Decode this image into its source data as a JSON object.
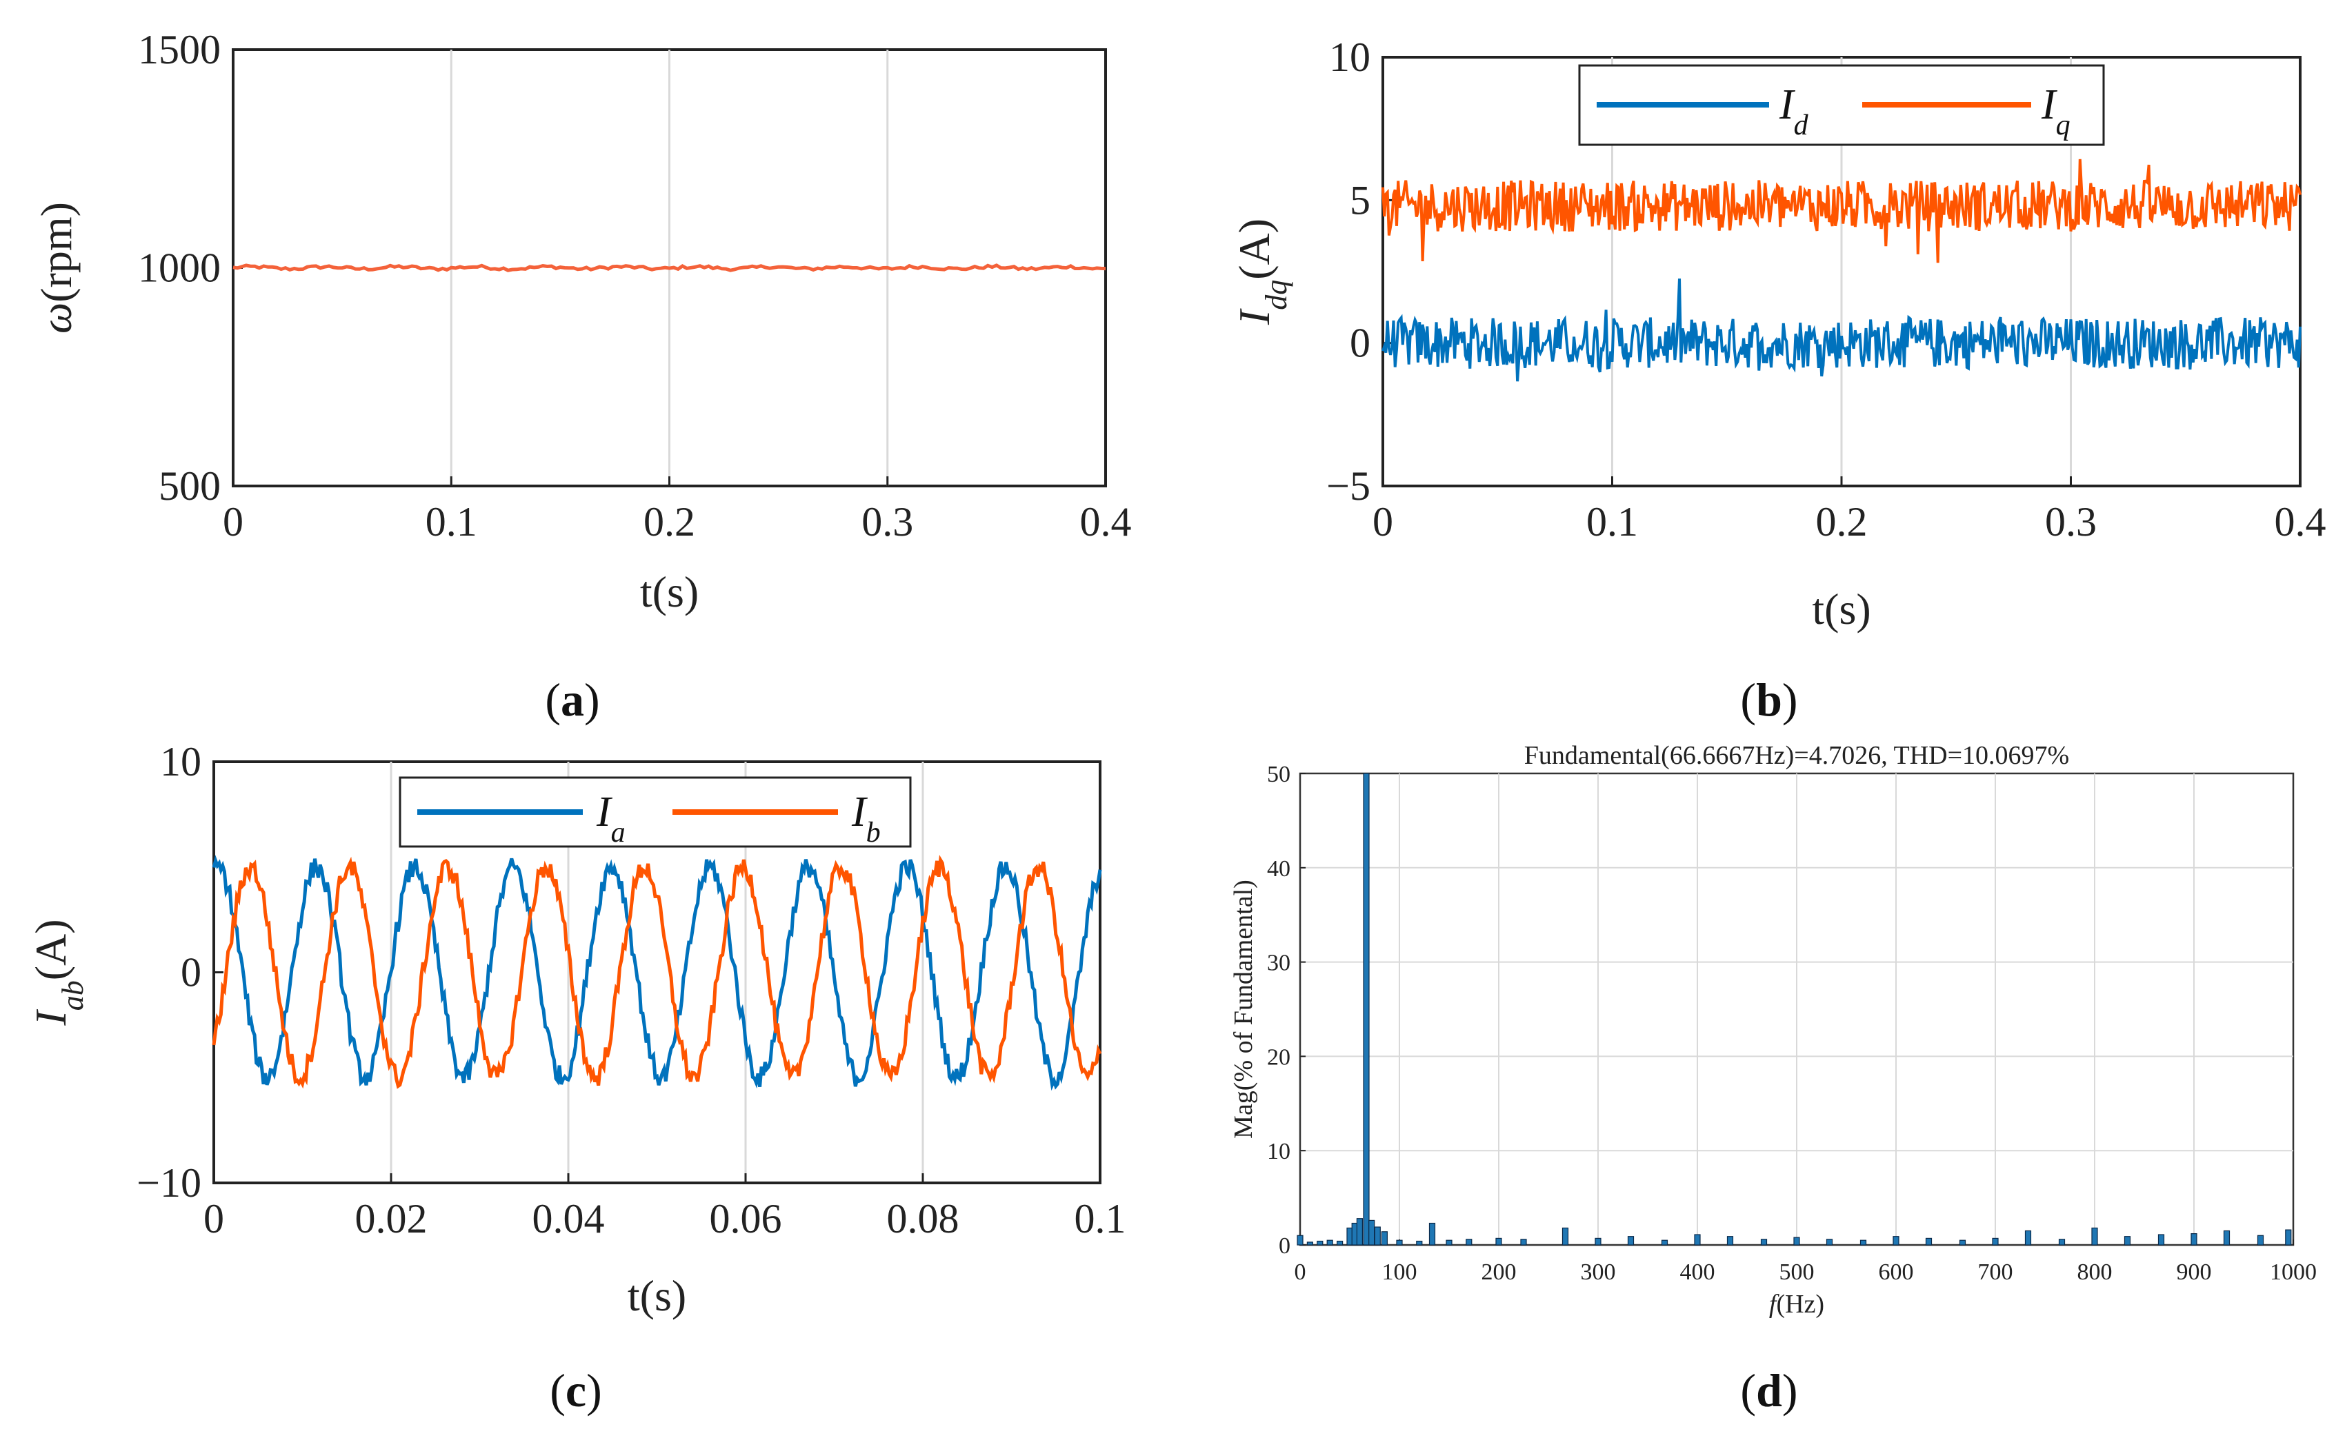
{
  "colors": {
    "blue": "#0072BD",
    "orange": "#FF5500",
    "orange_speed": "#F4623A",
    "bar_blue": "#1F77B4",
    "grid": "#d9d9d9"
  },
  "panels": {
    "a": {
      "caption_letter": "a"
    },
    "b": {
      "caption_letter": "b"
    },
    "c": {
      "caption_letter": "c"
    },
    "d": {
      "caption_letter": "d"
    }
  },
  "chart_data": [
    {
      "id": "a",
      "type": "line",
      "xlabel": "t(s)",
      "ylabel_symbol": "ω",
      "ylabel_unit": "(rpm)",
      "xlim": [
        0,
        0.4
      ],
      "ylim": [
        500,
        1500
      ],
      "xticks": [
        0,
        0.1,
        0.2,
        0.3,
        0.4
      ],
      "xtick_labels": [
        "0",
        "0.1",
        "0.2",
        "0.3",
        "0.4"
      ],
      "yticks": [
        500,
        1000,
        1500
      ],
      "ytick_labels": [
        "500",
        "1000",
        "1500"
      ],
      "grid": true,
      "series": [
        {
          "name": "speed",
          "mean": 1000,
          "ripple": 6,
          "samples": 200
        }
      ]
    },
    {
      "id": "b",
      "type": "line",
      "xlabel": "t(s)",
      "ylabel_main": "I",
      "ylabel_sub": "dq",
      "ylabel_unit": "(A)",
      "xlim": [
        0,
        0.4
      ],
      "ylim": [
        -5,
        10
      ],
      "xticks": [
        0,
        0.1,
        0.2,
        0.3,
        0.4
      ],
      "xtick_labels": [
        "0",
        "0.1",
        "0.2",
        "0.3",
        "0.4"
      ],
      "yticks": [
        -5,
        0,
        5,
        10
      ],
      "ytick_labels": [
        "−5",
        "0",
        "5",
        "10"
      ],
      "grid": true,
      "legend": "top-center",
      "series": [
        {
          "name": "I_d",
          "label_main": "I",
          "label_sub": "d",
          "mean": 0,
          "noise": 0.9,
          "samples": 600
        },
        {
          "name": "I_q",
          "label_main": "I",
          "label_sub": "q",
          "mean": 4.8,
          "noise": 0.9,
          "samples": 600
        }
      ]
    },
    {
      "id": "c",
      "type": "line",
      "xlabel": "t(s)",
      "ylabel_main": "I",
      "ylabel_sub": "ab",
      "ylabel_unit": "(A)",
      "xlim": [
        0,
        0.1
      ],
      "ylim": [
        -10,
        10
      ],
      "xticks": [
        0,
        0.02,
        0.04,
        0.06,
        0.08,
        0.1
      ],
      "xtick_labels": [
        "0",
        "0.02",
        "0.04",
        "0.06",
        "0.08",
        "0.1"
      ],
      "yticks": [
        -10,
        0,
        10
      ],
      "ytick_labels": [
        "−10",
        "0",
        "10"
      ],
      "grid": true,
      "legend": "top-center",
      "series": [
        {
          "name": "I_a",
          "label_main": "I",
          "label_sub": "a",
          "amplitude": 5,
          "frequency_hz": 90,
          "phase_deg": 75,
          "noise": 0.5,
          "samples": 500
        },
        {
          "name": "I_b",
          "label_main": "I",
          "label_sub": "b",
          "amplitude": 5,
          "frequency_hz": 90,
          "phase_deg": -45,
          "noise": 0.5,
          "samples": 500
        }
      ]
    },
    {
      "id": "d",
      "type": "bar",
      "title": "Fundamental(66.6667Hz)=4.7026, THD=10.0697%",
      "xlabel_symbol": "f",
      "xlabel_unit": "(Hz)",
      "ylabel": "Mag(% of Fundamental)",
      "xlim": [
        0,
        1000
      ],
      "ylim": [
        0,
        50
      ],
      "xticks": [
        0,
        100,
        200,
        300,
        400,
        500,
        600,
        700,
        800,
        900,
        1000
      ],
      "xtick_labels": [
        "0",
        "100",
        "200",
        "300",
        "400",
        "500",
        "600",
        "700",
        "800",
        "900",
        "1000"
      ],
      "yticks": [
        0,
        10,
        20,
        30,
        40,
        50
      ],
      "ytick_labels": [
        "0",
        "10",
        "20",
        "30",
        "40",
        "50"
      ],
      "grid": true,
      "bars": [
        {
          "f": 0,
          "v": 1.0
        },
        {
          "f": 10,
          "v": 0.3
        },
        {
          "f": 20,
          "v": 0.4
        },
        {
          "f": 30,
          "v": 0.5
        },
        {
          "f": 40,
          "v": 0.4
        },
        {
          "f": 50,
          "v": 1.8
        },
        {
          "f": 55,
          "v": 2.3
        },
        {
          "f": 60,
          "v": 2.8
        },
        {
          "f": 66.6667,
          "v": 100
        },
        {
          "f": 72,
          "v": 2.6
        },
        {
          "f": 78,
          "v": 1.9
        },
        {
          "f": 85,
          "v": 1.4
        },
        {
          "f": 100,
          "v": 0.5
        },
        {
          "f": 120,
          "v": 0.4
        },
        {
          "f": 133,
          "v": 2.3
        },
        {
          "f": 150,
          "v": 0.5
        },
        {
          "f": 170,
          "v": 0.6
        },
        {
          "f": 200,
          "v": 0.7
        },
        {
          "f": 225,
          "v": 0.6
        },
        {
          "f": 267,
          "v": 1.8
        },
        {
          "f": 300,
          "v": 0.7
        },
        {
          "f": 333,
          "v": 0.9
        },
        {
          "f": 367,
          "v": 0.5
        },
        {
          "f": 400,
          "v": 1.1
        },
        {
          "f": 433,
          "v": 0.9
        },
        {
          "f": 467,
          "v": 0.6
        },
        {
          "f": 500,
          "v": 0.8
        },
        {
          "f": 533,
          "v": 0.6
        },
        {
          "f": 567,
          "v": 0.5
        },
        {
          "f": 600,
          "v": 0.9
        },
        {
          "f": 633,
          "v": 0.7
        },
        {
          "f": 667,
          "v": 0.5
        },
        {
          "f": 700,
          "v": 0.7
        },
        {
          "f": 733,
          "v": 1.5
        },
        {
          "f": 767,
          "v": 0.6
        },
        {
          "f": 800,
          "v": 1.8
        },
        {
          "f": 833,
          "v": 0.9
        },
        {
          "f": 867,
          "v": 1.1
        },
        {
          "f": 900,
          "v": 1.2
        },
        {
          "f": 933,
          "v": 1.5
        },
        {
          "f": 967,
          "v": 1.0
        },
        {
          "f": 995,
          "v": 1.6
        }
      ]
    }
  ]
}
